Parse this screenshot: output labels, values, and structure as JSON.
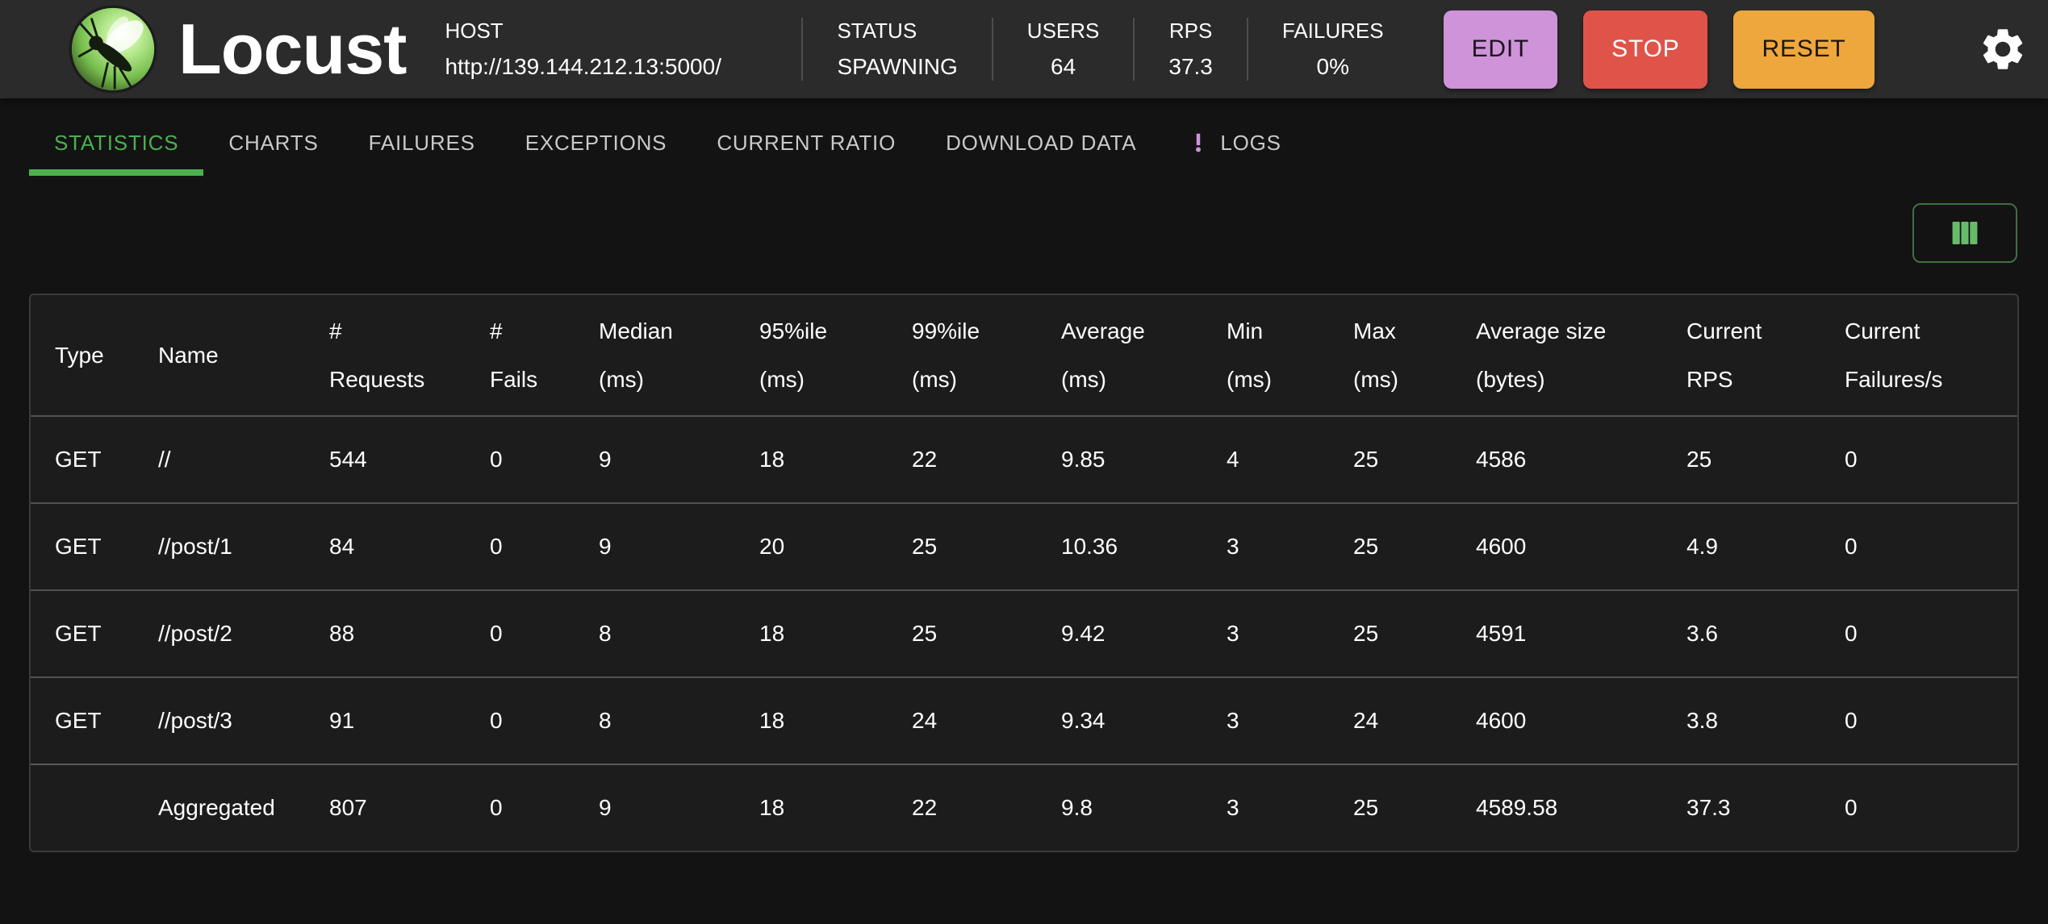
{
  "header": {
    "brand": "Locust",
    "host": {
      "label": "HOST",
      "value": "http://139.144.212.13:5000/"
    },
    "status": {
      "label": "STATUS",
      "value": "SPAWNING"
    },
    "users": {
      "label": "USERS",
      "value": "64"
    },
    "rps": {
      "label": "RPS",
      "value": "37.3"
    },
    "failures": {
      "label": "FAILURES",
      "value": "0%"
    },
    "edit_button": "EDIT",
    "stop_button": "STOP",
    "reset_button": "RESET"
  },
  "tabs": [
    {
      "label": "STATISTICS",
      "active": true
    },
    {
      "label": "CHARTS",
      "active": false
    },
    {
      "label": "FAILURES",
      "active": false
    },
    {
      "label": "EXCEPTIONS",
      "active": false
    },
    {
      "label": "CURRENT RATIO",
      "active": false
    },
    {
      "label": "DOWNLOAD DATA",
      "active": false
    },
    {
      "label": "LOGS",
      "active": false,
      "badge_icon": "exclamation-icon"
    }
  ],
  "toolbar": {
    "column_selector_icon": "view-columns-icon"
  },
  "table": {
    "columns": [
      [
        "Type"
      ],
      [
        "Name"
      ],
      [
        "#",
        "Requests"
      ],
      [
        "#",
        "Fails"
      ],
      [
        "Median",
        "(ms)"
      ],
      [
        "95%ile",
        "(ms)"
      ],
      [
        "99%ile",
        "(ms)"
      ],
      [
        "Average",
        "(ms)"
      ],
      [
        "Min",
        "(ms)"
      ],
      [
        "Max",
        "(ms)"
      ],
      [
        "Average size",
        "(bytes)"
      ],
      [
        "Current",
        "RPS"
      ],
      [
        "Current",
        "Failures/s"
      ]
    ],
    "rows": [
      [
        "GET",
        "//",
        "544",
        "0",
        "9",
        "18",
        "22",
        "9.85",
        "4",
        "25",
        "4586",
        "25",
        "0"
      ],
      [
        "GET",
        "//post/1",
        "84",
        "0",
        "9",
        "20",
        "25",
        "10.36",
        "3",
        "25",
        "4600",
        "4.9",
        "0"
      ],
      [
        "GET",
        "//post/2",
        "88",
        "0",
        "8",
        "18",
        "25",
        "9.42",
        "3",
        "25",
        "4591",
        "3.6",
        "0"
      ],
      [
        "GET",
        "//post/3",
        "91",
        "0",
        "8",
        "18",
        "24",
        "9.34",
        "3",
        "24",
        "4600",
        "3.8",
        "0"
      ]
    ],
    "aggregated": [
      "",
      "Aggregated",
      "807",
      "0",
      "9",
      "18",
      "22",
      "9.8",
      "3",
      "25",
      "4589.58",
      "37.3",
      "0"
    ]
  },
  "colors": {
    "accent_green": "#4caf50",
    "icon_green": "#66bb6a",
    "edit_purple": "#ce93d8",
    "stop_red": "#df5349",
    "reset_orange": "#eda73c",
    "badge_purple": "#ce93d8"
  }
}
